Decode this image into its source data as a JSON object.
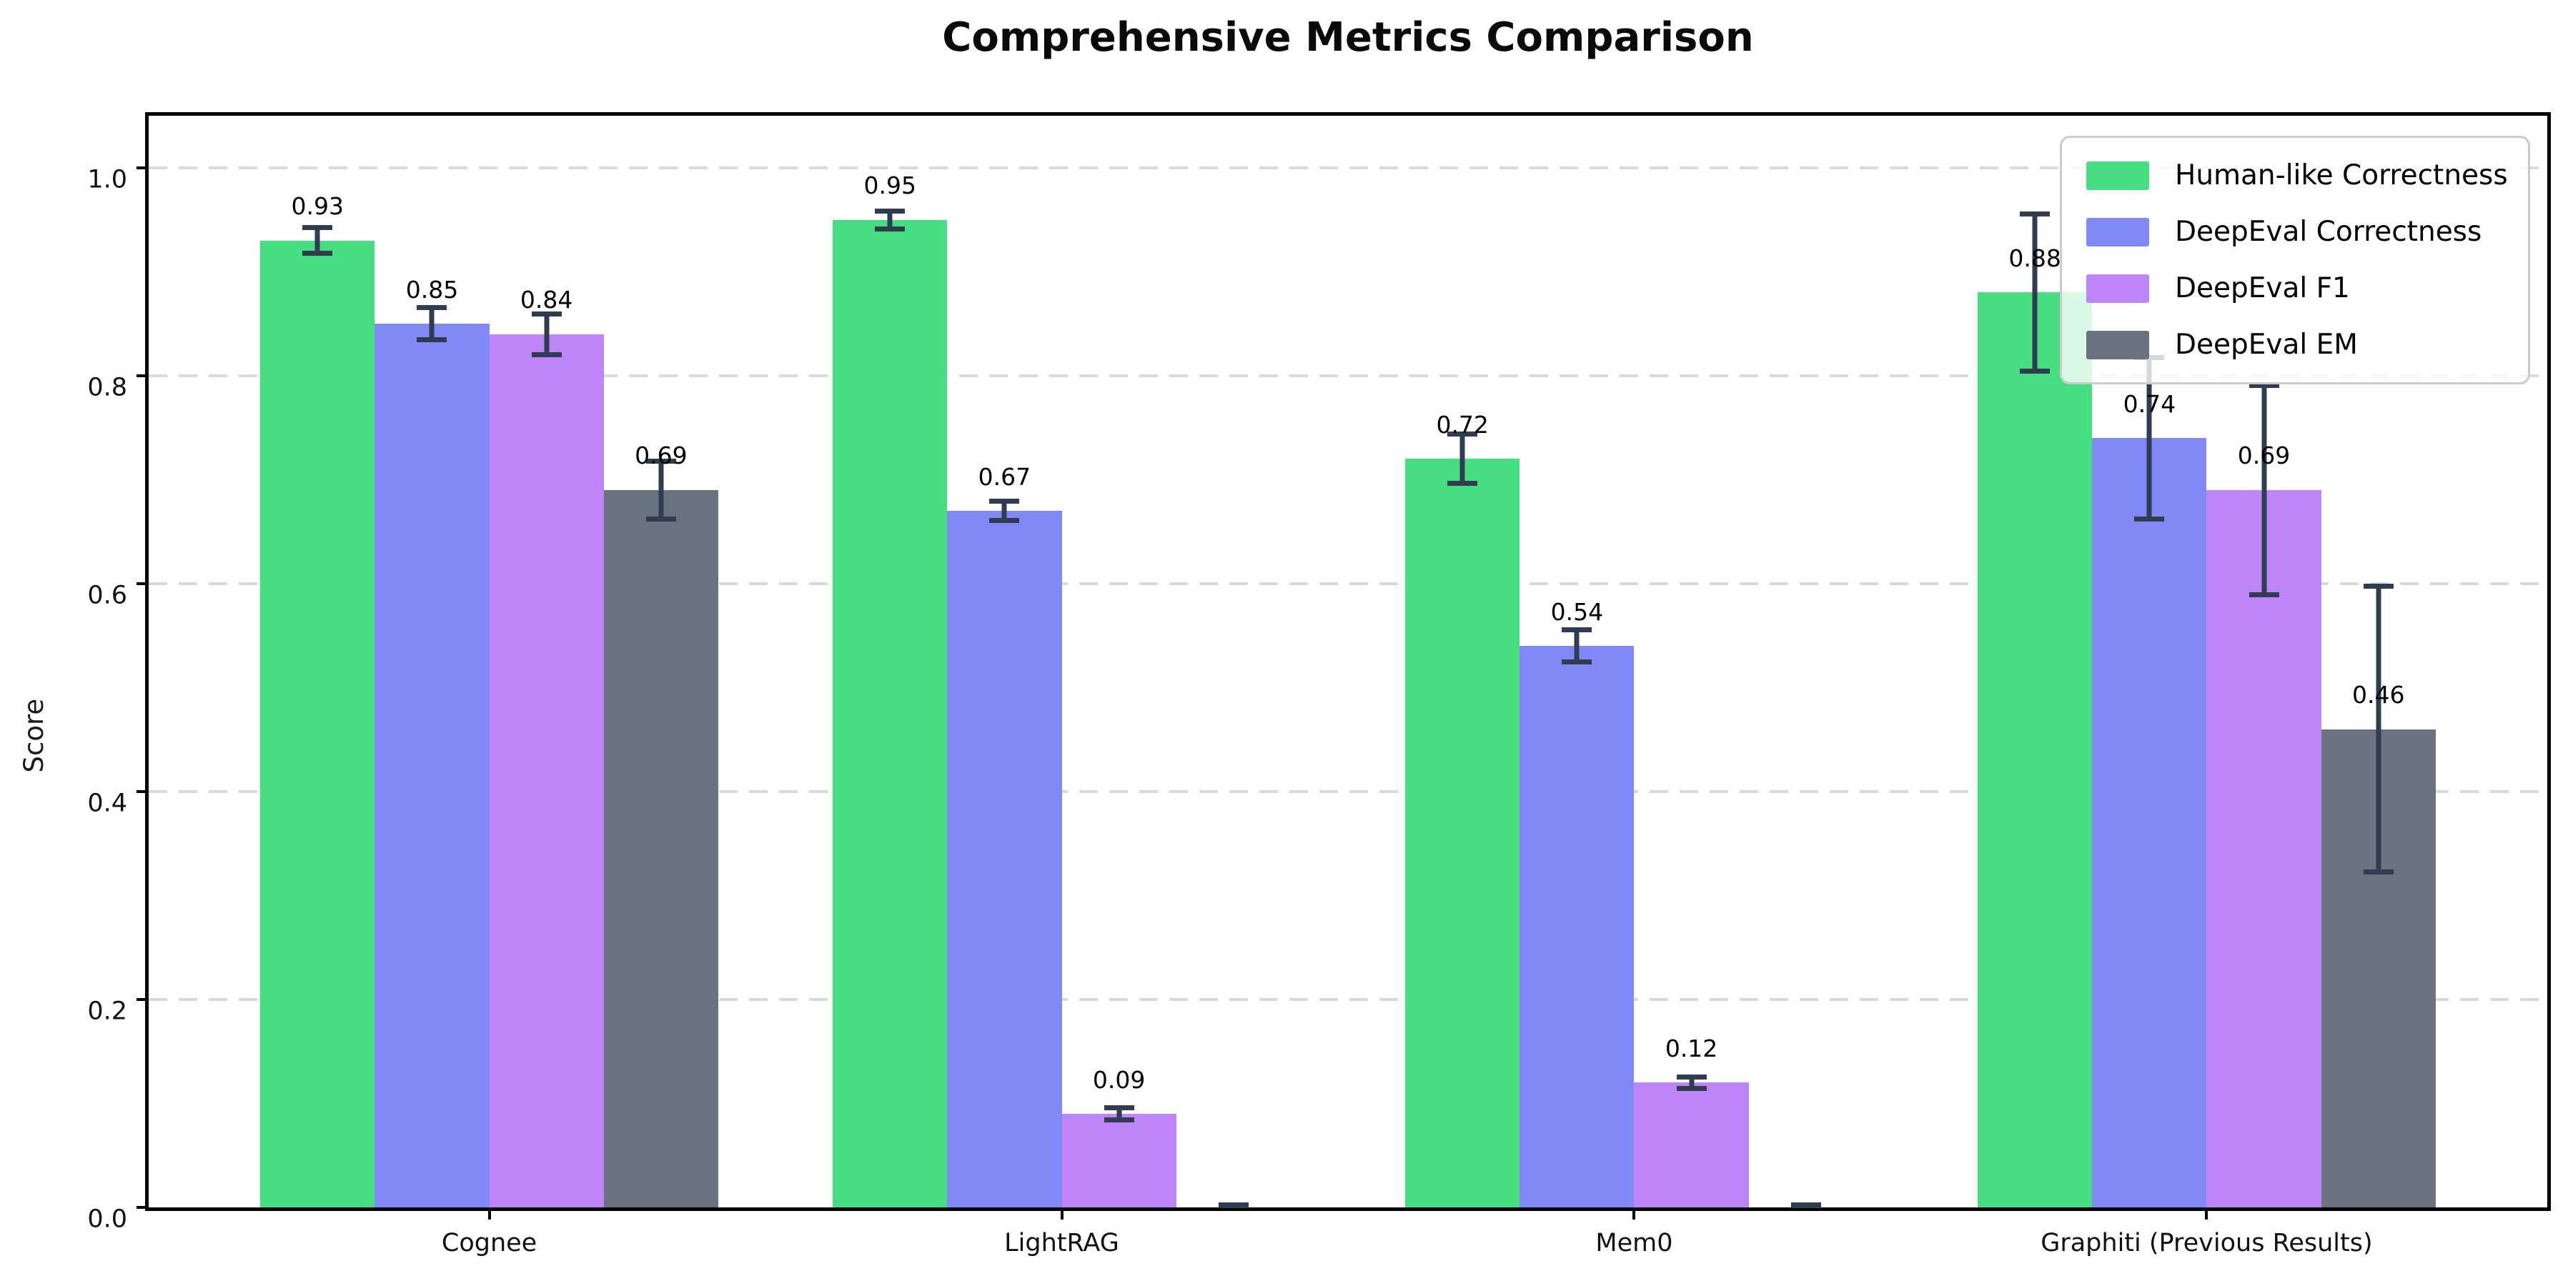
{
  "title": "Comprehensive Metrics Comparison",
  "chart_data": {
    "type": "bar",
    "title": "Comprehensive Metrics Comparison",
    "xlabel": "",
    "ylabel": "Score",
    "ylim": [
      0,
      1.05
    ],
    "xlim_units": [
      -0.595,
      3.595
    ],
    "bar_width_units": 0.2,
    "yticks": [
      "0.0",
      "0.2",
      "0.4",
      "0.6",
      "0.8",
      "1.0"
    ],
    "grid": "horizontal dashed",
    "legend_position": "upper right",
    "categories": [
      "Cognee",
      "LightRAG",
      "Mem0",
      "Graphiti (Previous Results)"
    ],
    "series": [
      {
        "name": "Human-like Correctness",
        "color": "#47dd81",
        "values": [
          0.93,
          0.95,
          0.72,
          0.88
        ],
        "errors": [
          0.015,
          0.011,
          0.026,
          0.078
        ],
        "labels": [
          "0.93",
          "0.95",
          "0.72",
          "0.88"
        ]
      },
      {
        "name": "DeepEval Correctness",
        "color": "#8189f7",
        "values": [
          0.85,
          0.67,
          0.54,
          0.74
        ],
        "errors": [
          0.018,
          0.012,
          0.018,
          0.08
        ],
        "labels": [
          "0.85",
          "0.67",
          "0.54",
          "0.74"
        ]
      },
      {
        "name": "DeepEval F1",
        "color": "#bd85f7",
        "values": [
          0.84,
          0.09,
          0.12,
          0.69
        ],
        "errors": [
          0.022,
          0.008,
          0.008,
          0.103
        ],
        "labels": [
          "0.84",
          "0.09",
          "0.12",
          "0.69"
        ]
      },
      {
        "name": "DeepEval EM",
        "color": "#6a7280",
        "values": [
          0.69,
          0.0,
          0.0,
          0.46
        ],
        "errors": [
          0.03,
          0.004,
          0.004,
          0.14
        ],
        "labels": [
          "0.69",
          null,
          null,
          "0.46"
        ]
      }
    ],
    "error_bar_color": "#303c50",
    "label_offset_units": 0.02
  },
  "colors": {
    "background": "#ffffff",
    "spine": "#000000",
    "gridline": "#d9d9d9",
    "error_bar": "#303c50",
    "legend_border": "#cbcbcb"
  }
}
